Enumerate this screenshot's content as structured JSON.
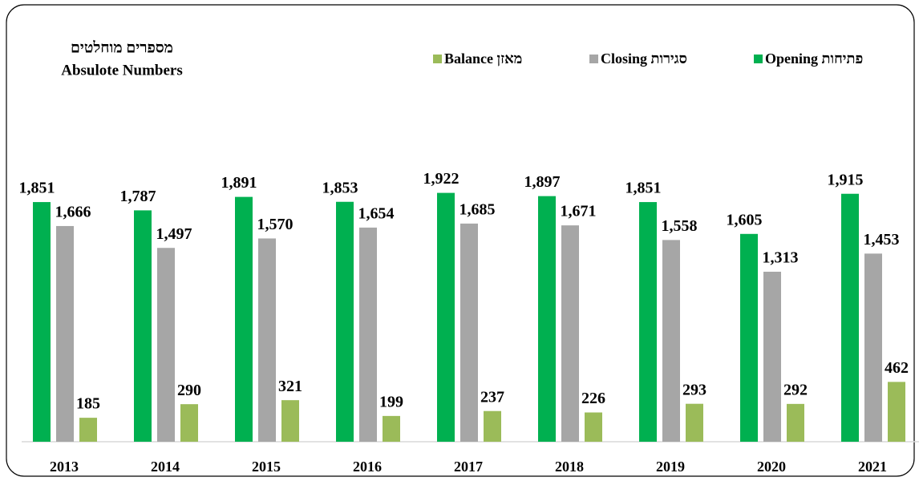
{
  "chart_data": {
    "type": "bar",
    "title": "מספרים מוחלטים",
    "subtitle": "Absulote Numbers",
    "categories": [
      "2013",
      "2014",
      "2015",
      "2016",
      "2017",
      "2018",
      "2019",
      "2020",
      "2021"
    ],
    "series": [
      {
        "name": "Opening פתיחות",
        "color": "#00b050",
        "values": [
          1851,
          1787,
          1891,
          1853,
          1922,
          1897,
          1851,
          1605,
          1915
        ],
        "value_labels": [
          "1,851",
          "1,787",
          "1,891",
          "1,853",
          "1,922",
          "1,897",
          "1,851",
          "1,605",
          "1,915"
        ]
      },
      {
        "name": "Closing סגירות",
        "color": "#a6a6a6",
        "values": [
          1666,
          1497,
          1570,
          1654,
          1685,
          1671,
          1558,
          1313,
          1453
        ],
        "value_labels": [
          "1,666",
          "1,497",
          "1,570",
          "1,654",
          "1,685",
          "1,671",
          "1,558",
          "1,313",
          "1,453"
        ]
      },
      {
        "name": "Balance מאזן",
        "color": "#9bbb59",
        "values": [
          185,
          290,
          321,
          199,
          237,
          226,
          293,
          292,
          462
        ]
      }
    ],
    "ylim": [
      0,
      2000
    ]
  }
}
